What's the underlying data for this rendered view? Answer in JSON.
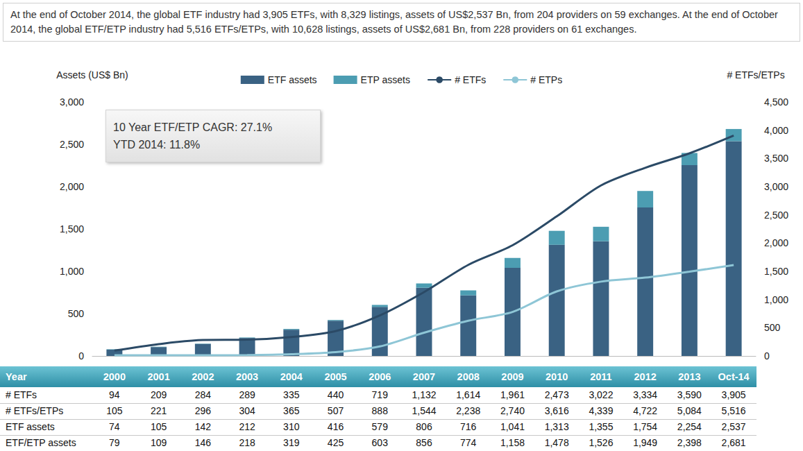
{
  "chart_data": {
    "type": "bar",
    "title": "At the end of October 2014, the global ETF industry had 3,905 ETFs, with 8,329 listings, assets of US$2,537 Bn, from 204 providers on 59 exchanges. At the end of October 2014, the global ETF/ETP industry had 5,516 ETFs/ETPs, with 10,628 listings, assets of US$2,681 Bn, from 228 providers on 61 exchanges.",
    "annotations": [
      "10 Year ETF/ETP CAGR: 27.1%",
      "YTD 2014: 11.8%"
    ],
    "y_label": "Assets (US$ Bn)",
    "y2_label": "# ETFs/ETPs",
    "categories": [
      "2000",
      "2001",
      "2002",
      "2003",
      "2004",
      "2005",
      "2006",
      "2007",
      "2008",
      "2009",
      "2010",
      "2011",
      "2012",
      "2013",
      "Oct-14"
    ],
    "stacked": true,
    "legend": "top",
    "grid": false,
    "tick_labels": "y",
    "series": [
      {
        "name": "ETF assets",
        "type": "bar",
        "color": "#3a6283",
        "values": [
          74,
          105,
          142,
          212,
          310,
          416,
          579,
          806,
          716,
          1041,
          1313,
          1355,
          1754,
          2254,
          2537
        ]
      },
      {
        "name": "ETP assets",
        "type": "bar",
        "color": "#4c9db2",
        "values": [
          5,
          4,
          4,
          6,
          9,
          9,
          24,
          50,
          58,
          117,
          165,
          171,
          195,
          144,
          144
        ]
      },
      {
        "name": "# ETFs",
        "type": "line",
        "axis": "y2",
        "color": "#2b4a66",
        "values": [
          94,
          209,
          284,
          289,
          335,
          440,
          719,
          1132,
          1614,
          1961,
          2473,
          3022,
          3334,
          3590,
          3905
        ]
      },
      {
        "name": "# ETPs",
        "type": "line",
        "axis": "y2",
        "color": "#8ec6d6",
        "values": [
          11,
          12,
          12,
          15,
          30,
          67,
          169,
          412,
          624,
          779,
          1143,
          1317,
          1388,
          1494,
          1611
        ]
      }
    ],
    "ylim": [
      0,
      3000
    ],
    "yticks": [
      0,
      500,
      {
        "value": 1000,
        "label": "1,000"
      },
      {
        "value": 1500,
        "label": "1,500"
      },
      {
        "value": 2000,
        "label": "2,000"
      },
      {
        "value": 2500,
        "label": "2,500"
      },
      {
        "value": 3000,
        "label": "3,000"
      }
    ],
    "y2lim": [
      0,
      4500
    ],
    "y2ticks": [
      0,
      500,
      {
        "value": 1000,
        "label": "1,000"
      },
      {
        "value": 1500,
        "label": "1,500"
      },
      {
        "value": 2000,
        "label": "2,000"
      },
      {
        "value": 2500,
        "label": "2,500"
      },
      {
        "value": 3000,
        "label": "3,000"
      },
      {
        "value": 3500,
        "label": "3,500"
      },
      {
        "value": 4000,
        "label": "4,000"
      },
      {
        "value": 4500,
        "label": "4,500"
      }
    ],
    "table": {
      "header": "Year",
      "rows": [
        {
          "label": "# ETFs",
          "cells": [
            "94",
            "209",
            "284",
            "289",
            "335",
            "440",
            "719",
            "1,132",
            "1,614",
            "1,961",
            "2,473",
            "3,022",
            "3,334",
            "3,590",
            "3,905"
          ]
        },
        {
          "label": "# ETFs/ETPs",
          "cells": [
            "105",
            "221",
            "296",
            "304",
            "365",
            "507",
            "888",
            "1,544",
            "2,238",
            "2,740",
            "3,616",
            "4,339",
            "4,722",
            "5,084",
            "5,516"
          ]
        },
        {
          "label": "ETF assets",
          "cells": [
            "74",
            "105",
            "142",
            "212",
            "310",
            "416",
            "579",
            "806",
            "716",
            "1,041",
            "1,313",
            "1,355",
            "1,754",
            "2,254",
            "2,537"
          ]
        },
        {
          "label": "ETF/ETP assets",
          "cells": [
            "79",
            "109",
            "146",
            "218",
            "319",
            "425",
            "603",
            "856",
            "774",
            "1,158",
            "1,478",
            "1,526",
            "1,949",
            "2,398",
            "2,681"
          ]
        }
      ]
    }
  }
}
